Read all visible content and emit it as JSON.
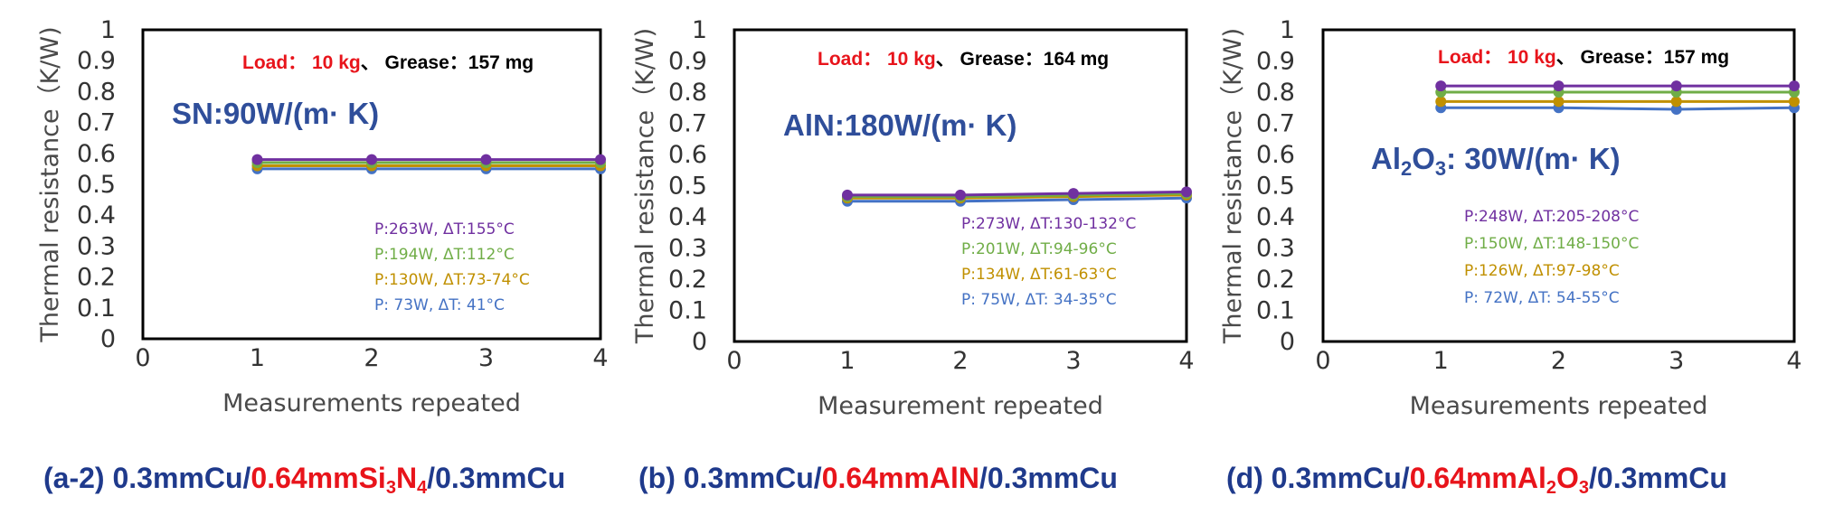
{
  "chart_data": [
    {
      "type": "line",
      "panel_caption": {
        "prefix": "(a-2) 0.3mmCu/",
        "highlight": "0.64mmSi",
        "highlight_sub1": "3",
        "highlight_mid": "N",
        "highlight_sub2": "4",
        "suffix": "/0.3mmCu"
      },
      "load_annotation": {
        "load": "Load： 10 kg",
        "separator": "、",
        "grease": "Grease：157 mg"
      },
      "material_label": {
        "text": "SN:90W/(m· K)"
      },
      "xlabel": "Measurements repeated",
      "ylabel": "Thermal resistance（K/W)",
      "xlim": [
        0,
        4
      ],
      "ylim": [
        0,
        1
      ],
      "x_ticks": [
        "0",
        "1",
        "2",
        "3",
        "4"
      ],
      "y_ticks": [
        "0",
        "0.1",
        "0.2",
        "0.3",
        "0.4",
        "0.5",
        "0.6",
        "0.7",
        "0.8",
        "0.9",
        "1"
      ],
      "x": [
        1,
        2,
        3,
        4
      ],
      "series": [
        {
          "name": "P:263W, ΔT:155°C",
          "color": "#7030a0",
          "values": [
            0.58,
            0.58,
            0.58,
            0.58
          ]
        },
        {
          "name": "P:194W, ΔT:112°C",
          "color": "#70ad47",
          "values": [
            0.57,
            0.57,
            0.57,
            0.57
          ]
        },
        {
          "name": "P:130W, ΔT:73-74°C",
          "color": "#c09000",
          "values": [
            0.56,
            0.56,
            0.56,
            0.56
          ]
        },
        {
          "name": "P: 73W, ΔT: 41°C",
          "color": "#4472c4",
          "values": [
            0.55,
            0.55,
            0.55,
            0.55
          ]
        }
      ]
    },
    {
      "type": "line",
      "panel_caption": {
        "prefix": "(b) 0.3mmCu/",
        "highlight": "0.64mmAlN",
        "highlight_sub1": "",
        "highlight_mid": "",
        "highlight_sub2": "",
        "suffix": "/0.3mmCu"
      },
      "load_annotation": {
        "load": "Load： 10 kg",
        "separator": "、",
        "grease": "Grease：164 mg"
      },
      "material_label": {
        "text": "AlN:180W/(m· K)"
      },
      "xlabel": "Measurement repeated",
      "ylabel": "Thermal resistance（K/W)",
      "xlim": [
        0,
        4
      ],
      "ylim": [
        0,
        1
      ],
      "x_ticks": [
        "0",
        "1",
        "2",
        "3",
        "4"
      ],
      "y_ticks": [
        "0",
        "0.1",
        "0.2",
        "0.3",
        "0.4",
        "0.5",
        "0.6",
        "0.7",
        "0.8",
        "0.9",
        "1"
      ],
      "x": [
        1,
        2,
        3,
        4
      ],
      "series": [
        {
          "name": "P:273W, ΔT:130-132°C",
          "color": "#7030a0",
          "values": [
            0.47,
            0.47,
            0.475,
            0.48
          ]
        },
        {
          "name": "P:201W, ΔT:94-96°C",
          "color": "#70ad47",
          "values": [
            0.465,
            0.465,
            0.47,
            0.475
          ]
        },
        {
          "name": "P:134W, ΔT:61-63°C",
          "color": "#c09000",
          "values": [
            0.46,
            0.46,
            0.465,
            0.47
          ]
        },
        {
          "name": "P: 75W, ΔT: 34-35°C",
          "color": "#4472c4",
          "values": [
            0.45,
            0.45,
            0.455,
            0.46
          ]
        }
      ]
    },
    {
      "type": "line",
      "panel_caption": {
        "prefix": "(d) 0.3mmCu/",
        "highlight": "0.64mmAl",
        "highlight_sub1": "2",
        "highlight_mid": "O",
        "highlight_sub2": "3",
        "suffix": "/0.3mmCu"
      },
      "load_annotation": {
        "load": "Load： 10 kg",
        "separator": "、",
        "grease": "Grease：157 mg"
      },
      "material_label": {
        "main": "Al",
        "sub1": "2",
        "mid": "O",
        "sub2": "3",
        "rest": ": 30W/(m· K)"
      },
      "xlabel": "Measurements repeated",
      "ylabel": "Thermal resistance（K/W)",
      "xlim": [
        0,
        4
      ],
      "ylim": [
        0,
        1
      ],
      "x_ticks": [
        "0",
        "1",
        "2",
        "3",
        "4"
      ],
      "y_ticks": [
        "0",
        "0.1",
        "0.2",
        "0.3",
        "0.4",
        "0.5",
        "0.6",
        "0.7",
        "0.8",
        "0.9",
        "1"
      ],
      "x": [
        1,
        2,
        3,
        4
      ],
      "series": [
        {
          "name": "P:248W, ΔT:205-208°C",
          "color": "#7030a0",
          "values": [
            0.82,
            0.82,
            0.82,
            0.82
          ]
        },
        {
          "name": "P:150W, ΔT:148-150°C",
          "color": "#70ad47",
          "values": [
            0.8,
            0.8,
            0.8,
            0.8
          ]
        },
        {
          "name": "P:126W, ΔT:97-98°C",
          "color": "#c09000",
          "values": [
            0.77,
            0.77,
            0.77,
            0.77
          ]
        },
        {
          "name": "P: 72W, ΔT: 54-55°C",
          "color": "#4472c4",
          "values": [
            0.75,
            0.75,
            0.745,
            0.75
          ]
        }
      ]
    }
  ],
  "colors": {
    "load_red": "#e8141b",
    "caption_blue": "#1f3a8c",
    "caption_red": "#e8141b",
    "material_blue": "#2f4e9a",
    "frame": "#000000"
  }
}
